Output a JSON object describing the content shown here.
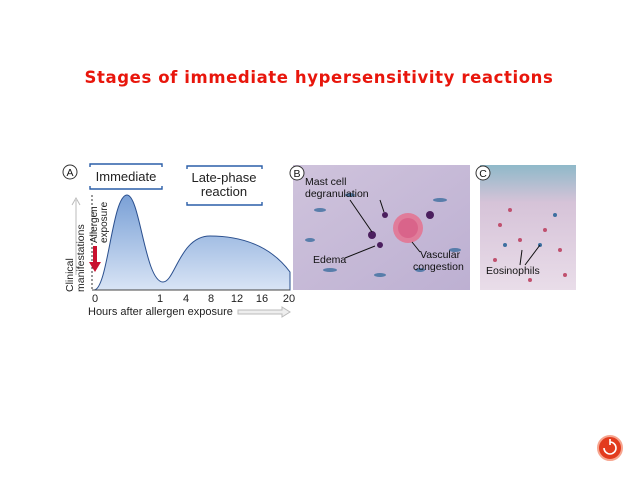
{
  "title": "Stages of immediate hypersensitivity reactions",
  "panel_a": {
    "label": "A",
    "immediate": "Immediate",
    "late_phase": [
      "Late-phase",
      "reaction"
    ],
    "y_axis": [
      "Clinical",
      "manifestations"
    ],
    "exposure": [
      "Allergen",
      "exposure"
    ],
    "x_ticks": [
      "0",
      "1",
      "4",
      "8",
      "12",
      "16",
      "20"
    ],
    "x_axis": "Hours after allergen exposure"
  },
  "panel_b": {
    "label": "B",
    "mast_cell": [
      "Mast cell",
      "degranulation"
    ],
    "edema": "Edema",
    "vascular": [
      "Vascular",
      "congestion"
    ]
  },
  "panel_c": {
    "label": "C",
    "eosinophils": "Eosinophils"
  }
}
